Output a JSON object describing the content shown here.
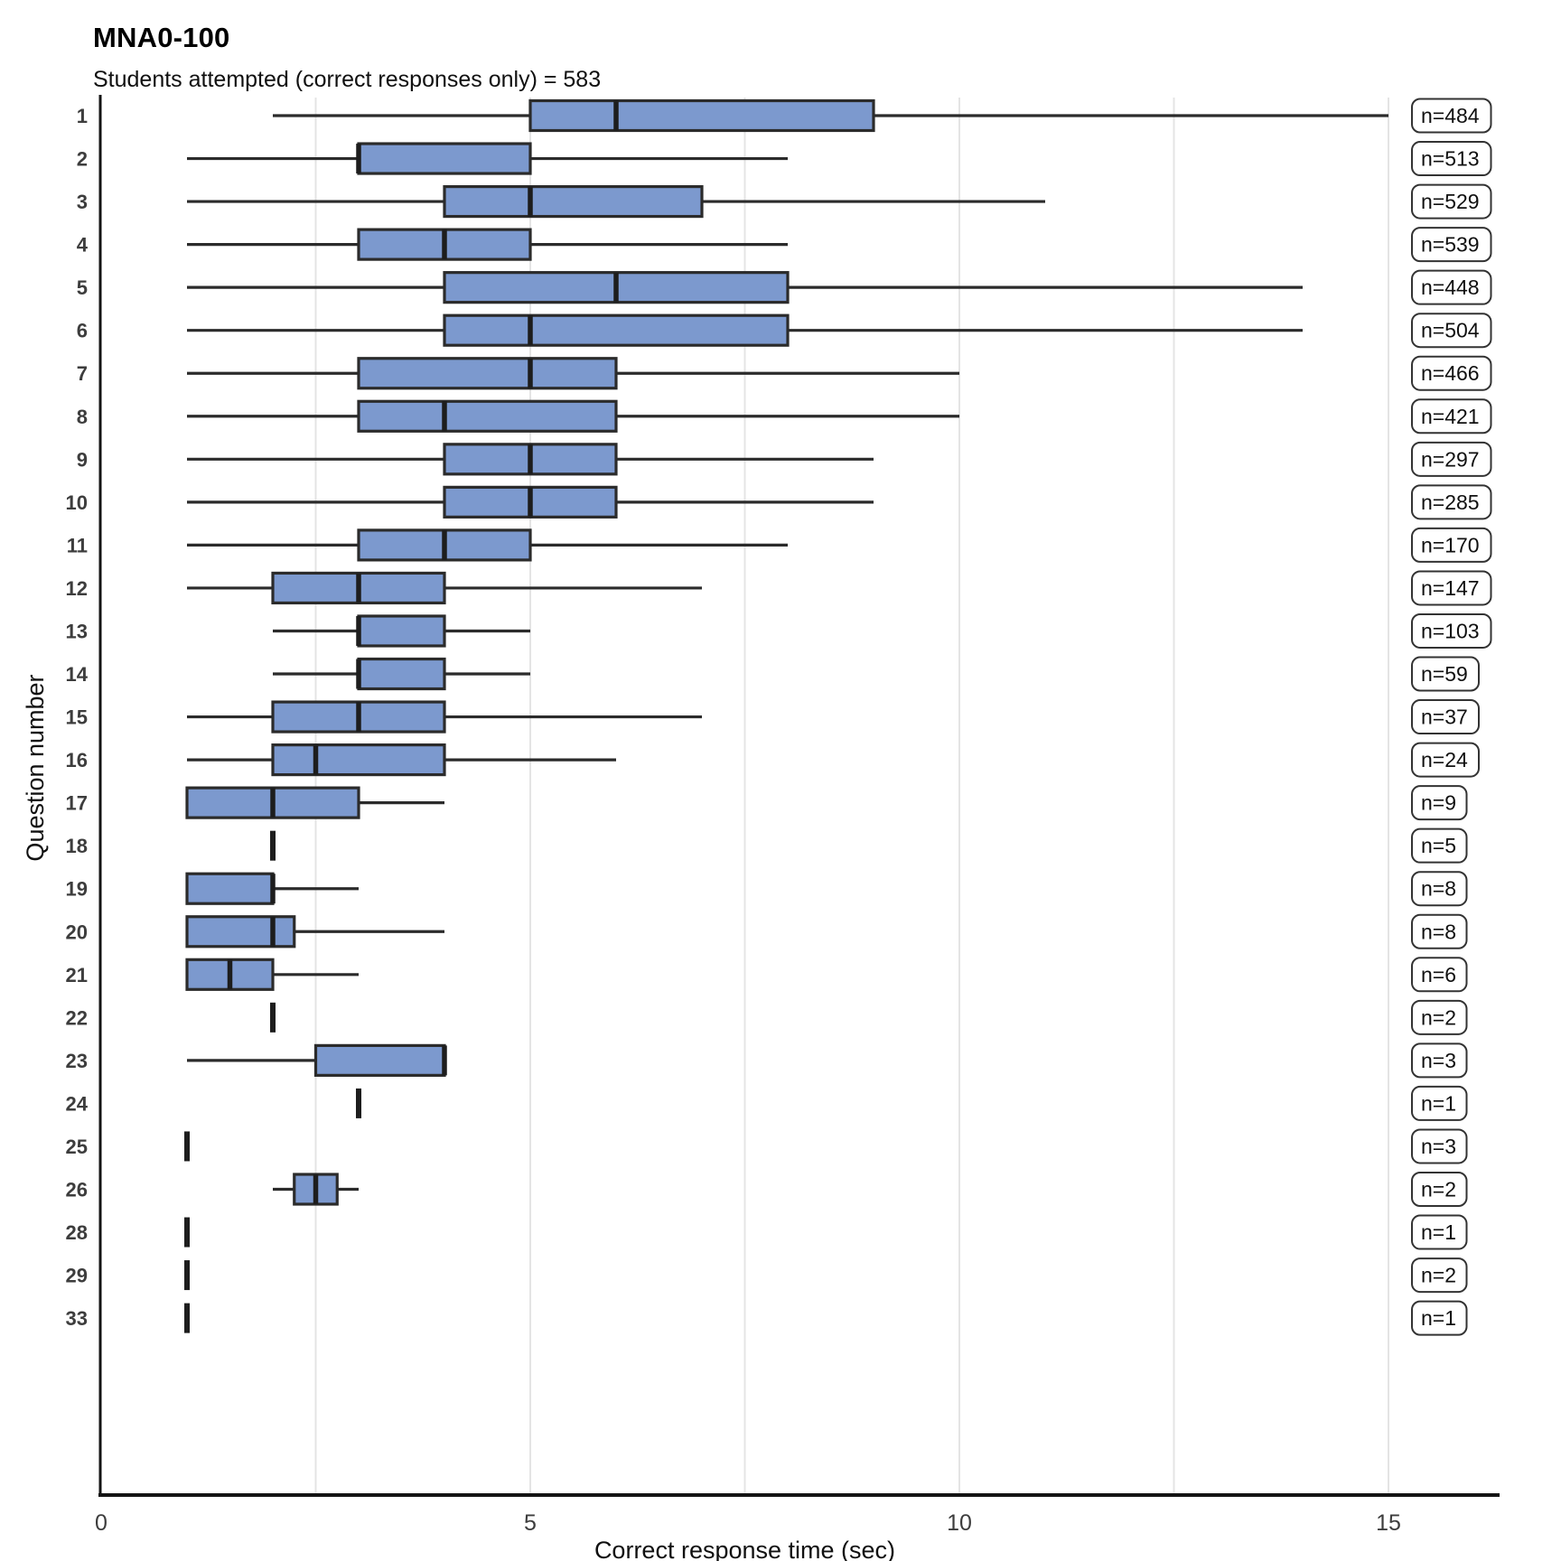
{
  "title": "MNA0-100",
  "subtitle": "Students attempted (correct responses only) = 583",
  "chart_data": {
    "type": "boxplot",
    "orientation": "horizontal",
    "title": "MNA0-100",
    "subtitle": "Students attempted (correct responses only) = 583",
    "xlabel": "Correct response time (sec)",
    "ylabel": "Question number",
    "xlim": [
      0,
      15
    ],
    "x_ticks": [
      0,
      5,
      10,
      15
    ],
    "gridlines_x": [
      2.5,
      5,
      7.5,
      10,
      12.5,
      15
    ],
    "grid": "vertical-light",
    "legend": "none",
    "colors": {
      "box_fill": "#7c99ce",
      "box_stroke": "#2b2b2b",
      "whisker": "#2b2b2b",
      "median": "#1d1d1d",
      "axis_line": "#141414",
      "gridline": "#e4e4e4",
      "tick_label": "#3d3d3d",
      "axis_title": "#101010",
      "badge_border": "#333333",
      "badge_text": "#101010",
      "badge_fill": "#ffffff"
    },
    "rows": [
      {
        "question": "1",
        "n": 484,
        "n_label": "n=484",
        "whisker_low": 2,
        "q1": 5,
        "median": 6,
        "q3": 9,
        "whisker_high": 15
      },
      {
        "question": "2",
        "n": 513,
        "n_label": "n=513",
        "whisker_low": 1,
        "q1": 3,
        "median": 3,
        "q3": 5,
        "whisker_high": 8
      },
      {
        "question": "3",
        "n": 529,
        "n_label": "n=529",
        "whisker_low": 1,
        "q1": 4,
        "median": 5,
        "q3": 7,
        "whisker_high": 11
      },
      {
        "question": "4",
        "n": 539,
        "n_label": "n=539",
        "whisker_low": 1,
        "q1": 3,
        "median": 4,
        "q3": 5,
        "whisker_high": 8
      },
      {
        "question": "5",
        "n": 448,
        "n_label": "n=448",
        "whisker_low": 1,
        "q1": 4,
        "median": 6,
        "q3": 8,
        "whisker_high": 14
      },
      {
        "question": "6",
        "n": 504,
        "n_label": "n=504",
        "whisker_low": 1,
        "q1": 4,
        "median": 5,
        "q3": 8,
        "whisker_high": 14
      },
      {
        "question": "7",
        "n": 466,
        "n_label": "n=466",
        "whisker_low": 1,
        "q1": 3,
        "median": 5,
        "q3": 6,
        "whisker_high": 10
      },
      {
        "question": "8",
        "n": 421,
        "n_label": "n=421",
        "whisker_low": 1,
        "q1": 3,
        "median": 4,
        "q3": 6,
        "whisker_high": 10
      },
      {
        "question": "9",
        "n": 297,
        "n_label": "n=297",
        "whisker_low": 1,
        "q1": 4,
        "median": 5,
        "q3": 6,
        "whisker_high": 9
      },
      {
        "question": "10",
        "n": 285,
        "n_label": "n=285",
        "whisker_low": 1,
        "q1": 4,
        "median": 5,
        "q3": 6,
        "whisker_high": 9
      },
      {
        "question": "11",
        "n": 170,
        "n_label": "n=170",
        "whisker_low": 1,
        "q1": 3,
        "median": 4,
        "q3": 5,
        "whisker_high": 8
      },
      {
        "question": "12",
        "n": 147,
        "n_label": "n=147",
        "whisker_low": 1,
        "q1": 2,
        "median": 3,
        "q3": 4,
        "whisker_high": 7
      },
      {
        "question": "13",
        "n": 103,
        "n_label": "n=103",
        "whisker_low": 2,
        "q1": 3,
        "median": 3,
        "q3": 4,
        "whisker_high": 5
      },
      {
        "question": "14",
        "n": 59,
        "n_label": "n=59",
        "whisker_low": 2,
        "q1": 3,
        "median": 3,
        "q3": 4,
        "whisker_high": 5
      },
      {
        "question": "15",
        "n": 37,
        "n_label": "n=37",
        "whisker_low": 1,
        "q1": 2,
        "median": 3,
        "q3": 4,
        "whisker_high": 7
      },
      {
        "question": "16",
        "n": 24,
        "n_label": "n=24",
        "whisker_low": 1,
        "q1": 2,
        "median": 2.5,
        "q3": 4,
        "whisker_high": 6
      },
      {
        "question": "17",
        "n": 9,
        "n_label": "n=9",
        "whisker_low": 1,
        "q1": 1,
        "median": 2,
        "q3": 3,
        "whisker_high": 4
      },
      {
        "question": "18",
        "n": 5,
        "n_label": "n=5",
        "whisker_low": 2,
        "q1": 2,
        "median": 2,
        "q3": 2,
        "whisker_high": 2
      },
      {
        "question": "19",
        "n": 8,
        "n_label": "n=8",
        "whisker_low": 1,
        "q1": 1,
        "median": 2,
        "q3": 2,
        "whisker_high": 3
      },
      {
        "question": "20",
        "n": 8,
        "n_label": "n=8",
        "whisker_low": 1,
        "q1": 1,
        "median": 2,
        "q3": 2.25,
        "whisker_high": 4
      },
      {
        "question": "21",
        "n": 6,
        "n_label": "n=6",
        "whisker_low": 1,
        "q1": 1,
        "median": 1.5,
        "q3": 2,
        "whisker_high": 3
      },
      {
        "question": "22",
        "n": 2,
        "n_label": "n=2",
        "whisker_low": 2,
        "q1": 2,
        "median": 2,
        "q3": 2,
        "whisker_high": 2
      },
      {
        "question": "23",
        "n": 3,
        "n_label": "n=3",
        "whisker_low": 1,
        "q1": 2.5,
        "median": 4,
        "q3": 4,
        "whisker_high": 4
      },
      {
        "question": "24",
        "n": 1,
        "n_label": "n=1",
        "whisker_low": 3,
        "q1": 3,
        "median": 3,
        "q3": 3,
        "whisker_high": 3
      },
      {
        "question": "25",
        "n": 3,
        "n_label": "n=3",
        "whisker_low": 1,
        "q1": 1,
        "median": 1,
        "q3": 1,
        "whisker_high": 1
      },
      {
        "question": "26",
        "n": 2,
        "n_label": "n=2",
        "whisker_low": 2,
        "q1": 2.25,
        "median": 2.5,
        "q3": 2.75,
        "whisker_high": 3
      },
      {
        "question": "28",
        "n": 1,
        "n_label": "n=1",
        "whisker_low": 1,
        "q1": 1,
        "median": 1,
        "q3": 1,
        "whisker_high": 1
      },
      {
        "question": "29",
        "n": 2,
        "n_label": "n=2",
        "whisker_low": 1,
        "q1": 1,
        "median": 1,
        "q3": 1,
        "whisker_high": 1
      },
      {
        "question": "33",
        "n": 1,
        "n_label": "n=1",
        "whisker_low": 1,
        "q1": 1,
        "median": 1,
        "q3": 1,
        "whisker_high": 1
      }
    ]
  }
}
